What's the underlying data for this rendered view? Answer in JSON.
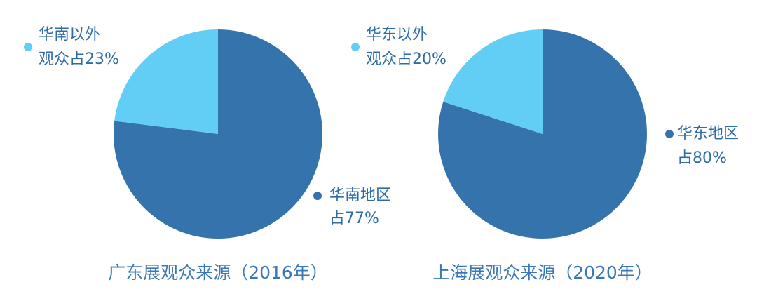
{
  "chart_data": [
    {
      "type": "pie",
      "title": "广东展观众来源（2016年）",
      "categories": [
        "华南地区",
        "华南以外"
      ],
      "values": [
        77,
        23
      ],
      "value_labels": [
        "占77%",
        "观众占23%"
      ],
      "colors": [
        "#3573ac",
        "#62cdf5"
      ]
    },
    {
      "type": "pie",
      "title": "上海展观众来源（2020年）",
      "categories": [
        "华东地区",
        "华东以外"
      ],
      "values": [
        80,
        20
      ],
      "value_labels": [
        "占80%",
        "观众占20%"
      ],
      "colors": [
        "#3573ac",
        "#62cdf5"
      ]
    }
  ]
}
